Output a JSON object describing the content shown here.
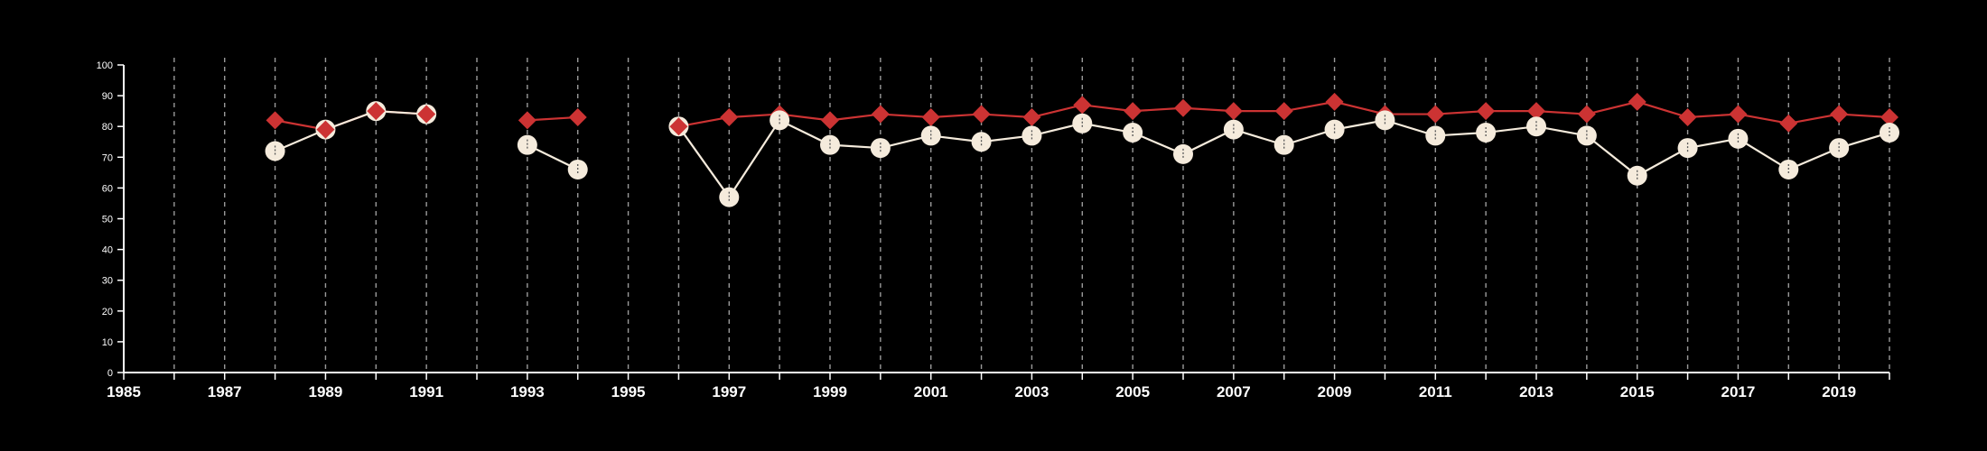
{
  "chart_data": {
    "type": "line",
    "title": "",
    "xlabel": "",
    "ylabel": "",
    "xlim": [
      1985,
      2020
    ],
    "ylim": [
      0,
      100
    ],
    "x_ticks": [
      1985,
      1987,
      1989,
      1991,
      1993,
      1995,
      1997,
      1999,
      2001,
      2003,
      2005,
      2007,
      2009,
      2011,
      2013,
      2015,
      2017,
      2019
    ],
    "y_ticks": [
      0,
      10,
      20,
      30,
      40,
      50,
      60,
      70,
      80,
      90,
      100
    ],
    "grid": "vertical dashed lines at every year",
    "series": [
      {
        "color": "#cc3333",
        "marker": "diamond",
        "points": [
          [
            1988,
            82
          ],
          [
            1989,
            79
          ],
          [
            1990,
            85
          ],
          [
            1991,
            84
          ],
          [
            1993,
            82
          ],
          [
            1994,
            83
          ],
          [
            1996,
            80
          ],
          [
            1997,
            83
          ],
          [
            1998,
            84
          ],
          [
            1999,
            82
          ],
          [
            2000,
            84
          ],
          [
            2001,
            83
          ],
          [
            2002,
            84
          ],
          [
            2003,
            83
          ],
          [
            2004,
            87
          ],
          [
            2005,
            85
          ],
          [
            2006,
            86
          ],
          [
            2007,
            85
          ],
          [
            2008,
            85
          ],
          [
            2009,
            88
          ],
          [
            2010,
            84
          ],
          [
            2011,
            84
          ],
          [
            2012,
            85
          ],
          [
            2013,
            85
          ],
          [
            2014,
            84
          ],
          [
            2015,
            88
          ],
          [
            2016,
            83
          ],
          [
            2017,
            84
          ],
          [
            2018,
            81
          ],
          [
            2019,
            84
          ],
          [
            2020,
            83
          ]
        ]
      },
      {
        "color": "#f5ebdc",
        "marker": "circle",
        "points": [
          [
            1988,
            72
          ],
          [
            1989,
            79
          ],
          [
            1990,
            85
          ],
          [
            1991,
            84
          ],
          [
            1993,
            74
          ],
          [
            1994,
            66
          ],
          [
            1996,
            80
          ],
          [
            1997,
            57
          ],
          [
            1998,
            82
          ],
          [
            1999,
            74
          ],
          [
            2000,
            73
          ],
          [
            2001,
            77
          ],
          [
            2002,
            75
          ],
          [
            2003,
            77
          ],
          [
            2004,
            81
          ],
          [
            2005,
            78
          ],
          [
            2006,
            71
          ],
          [
            2007,
            79
          ],
          [
            2008,
            74
          ],
          [
            2009,
            79
          ],
          [
            2010,
            82
          ],
          [
            2011,
            77
          ],
          [
            2012,
            78
          ],
          [
            2013,
            80
          ],
          [
            2014,
            77
          ],
          [
            2015,
            64
          ],
          [
            2016,
            73
          ],
          [
            2017,
            76
          ],
          [
            2018,
            66
          ],
          [
            2019,
            73
          ],
          [
            2020,
            78
          ]
        ]
      }
    ]
  }
}
